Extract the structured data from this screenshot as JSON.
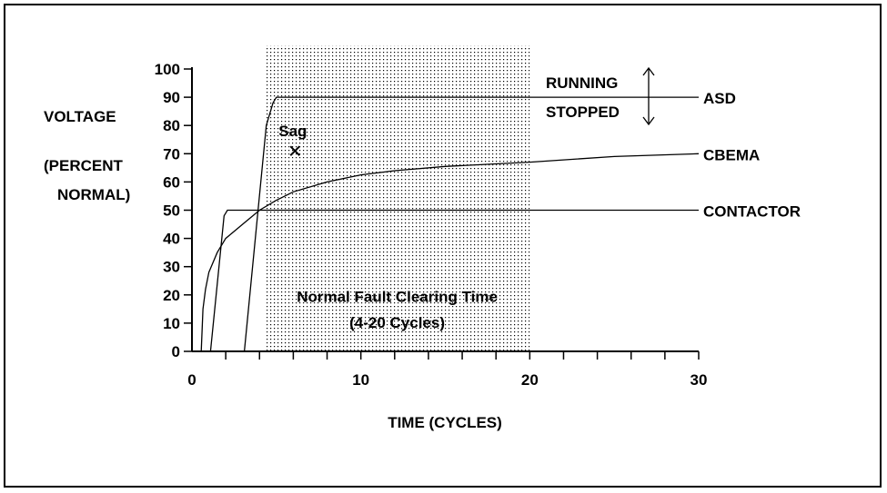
{
  "chart_data": {
    "type": "line",
    "xlabel": "TIME (CYCLES)",
    "ylabel_lines": [
      "VOLTAGE",
      "(PERCENT",
      "NORMAL)"
    ],
    "xlim": [
      0,
      30
    ],
    "ylim": [
      0,
      100
    ],
    "x_ticks": [
      0,
      10,
      20,
      30
    ],
    "y_ticks": [
      0,
      10,
      20,
      30,
      40,
      50,
      60,
      70,
      80,
      90,
      100
    ],
    "shaded_region": {
      "x_range": [
        4.3,
        20
      ],
      "label_line1": "Normal Fault Clearing Time",
      "label_line2": "(4-20 Cycles)"
    },
    "series": [
      {
        "name": "ASD",
        "x": [
          0,
          3.1,
          4.4,
          4.8,
          5.0,
          30
        ],
        "y": [
          0,
          0,
          80,
          88,
          90,
          90
        ]
      },
      {
        "name": "CBEMA",
        "x": [
          0,
          0.55,
          0.65,
          0.8,
          1.0,
          1.5,
          2.0,
          3.0,
          4.0,
          5.0,
          6.0,
          8.0,
          10.0,
          12.0,
          15.0,
          20.0,
          25.0,
          30.0
        ],
        "y": [
          0,
          0,
          15,
          22,
          28,
          35,
          40,
          45,
          50,
          53.5,
          56.5,
          60,
          62.5,
          64,
          65.5,
          67,
          69,
          70
        ]
      },
      {
        "name": "CONTACTOR",
        "x": [
          0,
          1.1,
          1.9,
          2.1,
          30
        ],
        "y": [
          0,
          0,
          48,
          50,
          50
        ]
      }
    ],
    "annotations": {
      "running": "RUNNING",
      "stopped": "STOPPED",
      "sag_label": "Sag",
      "sag_point": {
        "x": 6.1,
        "y": 71
      }
    }
  }
}
